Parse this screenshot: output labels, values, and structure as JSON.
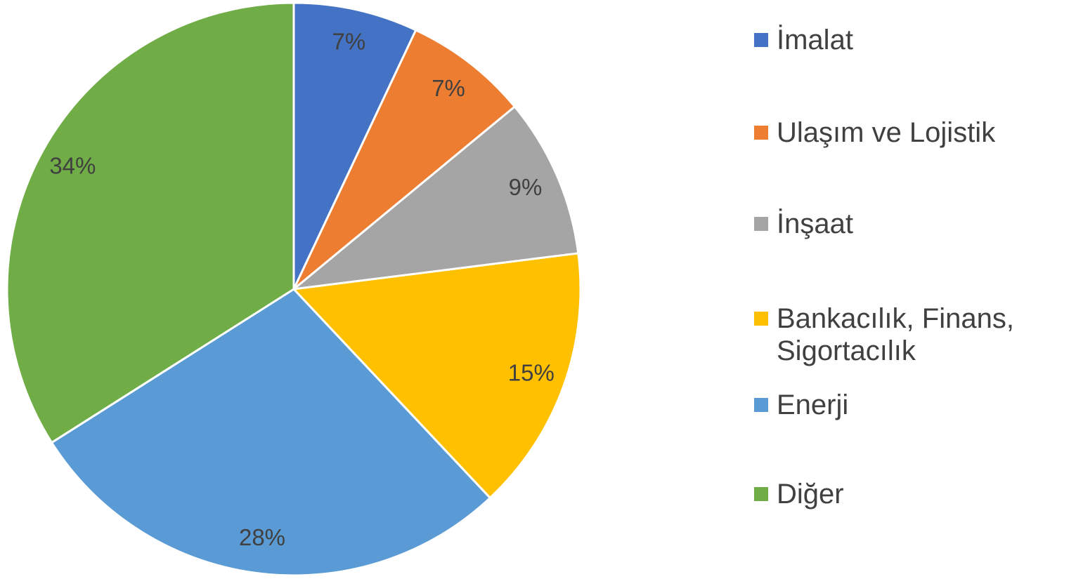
{
  "chart_data": {
    "type": "pie",
    "categories": [
      "İmalat",
      "Ulaşım ve Lojistik",
      "İnşaat",
      "Bankacılık, Finans, Sigortacılık",
      "Enerji",
      "Diğer"
    ],
    "values": [
      7,
      7,
      9,
      15,
      28,
      34
    ],
    "value_labels": [
      "7%",
      "7%",
      "9%",
      "15%",
      "28%",
      "34%"
    ],
    "colors": [
      "#4472c4",
      "#ed7d31",
      "#a5a5a5",
      "#ffc000",
      "#5b9bd5",
      "#70ad47"
    ],
    "legend": "right"
  }
}
